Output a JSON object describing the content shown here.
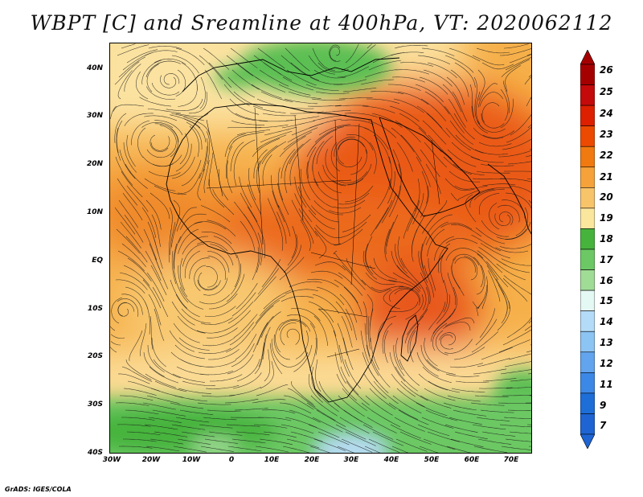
{
  "title": "WBPT [C] and Sreamline at 400hPa, VT: 2020062112",
  "credit": "GrADS: IGES/COLA",
  "map": {
    "projection": "lat-lon",
    "lon_range": [
      -30,
      75
    ],
    "lat_range": [
      -40,
      45
    ],
    "y_ticks": [
      {
        "label": "40N",
        "lat": 40
      },
      {
        "label": "30N",
        "lat": 30
      },
      {
        "label": "20N",
        "lat": 20
      },
      {
        "label": "10N",
        "lat": 10
      },
      {
        "label": "EQ",
        "lat": 0
      },
      {
        "label": "10S",
        "lat": -10
      },
      {
        "label": "20S",
        "lat": -20
      },
      {
        "label": "30S",
        "lat": -30
      },
      {
        "label": "40S",
        "lat": -40
      }
    ],
    "x_ticks": [
      {
        "label": "30W",
        "lon": -30
      },
      {
        "label": "20W",
        "lon": -20
      },
      {
        "label": "10W",
        "lon": -10
      },
      {
        "label": "0",
        "lon": 0
      },
      {
        "label": "10E",
        "lon": 10
      },
      {
        "label": "20E",
        "lon": 20
      },
      {
        "label": "30E",
        "lon": 30
      },
      {
        "label": "40E",
        "lon": 40
      },
      {
        "label": "50E",
        "lon": 50
      },
      {
        "label": "60E",
        "lon": 60
      },
      {
        "label": "70E",
        "lon": 70
      }
    ]
  },
  "colorbar": {
    "labels": [
      "26",
      "25",
      "24",
      "23",
      "22",
      "21",
      "20",
      "19",
      "18",
      "17",
      "16",
      "15",
      "14",
      "13",
      "12",
      "11",
      "9",
      "7"
    ],
    "colors": [
      "#a50000",
      "#c40a0a",
      "#dc2000",
      "#ec4a00",
      "#f07a10",
      "#f5a23a",
      "#f8c46a",
      "#fbe69e",
      "#46b43c",
      "#6cc864",
      "#a0dc96",
      "#e4f8f4",
      "#b4dcf8",
      "#8cc4f4",
      "#62a4ee",
      "#3c88e6",
      "#1e6ed8",
      "#1e64d2"
    ]
  }
}
